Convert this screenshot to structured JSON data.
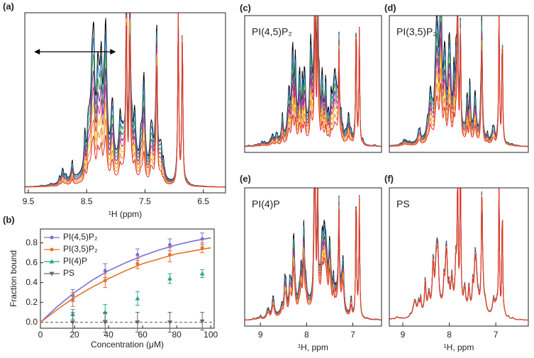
{
  "chart_data": [
    {
      "type": "spectrum",
      "panel": "(a)",
      "xlabel": "¹H (ppm)",
      "xlim": [
        9.56,
        6.12
      ],
      "xticks": [
        9.5,
        8.5,
        7.5,
        6.5
      ],
      "center": 8.0,
      "spread": 0.11,
      "arrow": [
        9.4,
        8.0
      ],
      "trace_colors": [
        "#000000",
        "#2b7bc4",
        "#3c9a4a",
        "#7a2f8e",
        "#d0368f",
        "#f2c318",
        "#f08a3a",
        "#e0302a"
      ]
    },
    {
      "type": "scatter",
      "panel": "(b)",
      "xlabel": "Concentration (μM)",
      "ylabel": "Fraction bound",
      "xlim": [
        0,
        102
      ],
      "ylim": [
        -0.06,
        0.94
      ],
      "xticks": [
        0,
        20,
        40,
        60,
        80,
        100
      ],
      "yticks": [
        {
          "value": 0,
          "label": "0.0"
        },
        {
          "value": 0.2,
          "label": "0.2"
        },
        {
          "value": 0.4,
          "label": "0.4"
        },
        {
          "value": 0.6,
          "label": "0.6"
        },
        {
          "value": 0.8,
          "label": "0.8"
        }
      ],
      "hline": 0,
      "fit_x": [
        0,
        10,
        20,
        30,
        40,
        50,
        60,
        70,
        80,
        90,
        100
      ],
      "series": [
        {
          "name": "PI(4,5)P₂",
          "color": "#7b6fd0",
          "marker": "circle",
          "x": [
            19,
            38,
            57,
            76,
            95
          ],
          "values": [
            0.27,
            0.52,
            0.68,
            0.78,
            0.84
          ],
          "errors": [
            0.06,
            0.07,
            0.06,
            0.06,
            0.06
          ],
          "fit": [
            0,
            0.16,
            0.3,
            0.42,
            0.52,
            0.6,
            0.67,
            0.73,
            0.78,
            0.82,
            0.85
          ]
        },
        {
          "name": "PI(3,5)P₂",
          "color": "#e8702a",
          "marker": "circle",
          "x": [
            19,
            38,
            57,
            76,
            95
          ],
          "values": [
            0.23,
            0.42,
            0.59,
            0.68,
            0.75
          ],
          "errors": [
            0.07,
            0.07,
            0.05,
            0.07,
            0.05
          ],
          "fit": [
            0,
            0.13,
            0.25,
            0.35,
            0.44,
            0.52,
            0.59,
            0.64,
            0.69,
            0.72,
            0.75
          ]
        },
        {
          "name": "PI(4)P",
          "color": "#2ca58d",
          "marker": "triangle",
          "x": [
            19,
            38,
            57,
            76,
            95
          ],
          "values": [
            0.08,
            0.1,
            0.24,
            0.44,
            0.49
          ],
          "errors": [
            0.05,
            0.08,
            0.07,
            0.05,
            0.04
          ]
        },
        {
          "name": "PS",
          "color": "#666666",
          "marker": "down",
          "x": [
            19,
            38,
            57,
            76,
            95
          ],
          "values": [
            0,
            0,
            0,
            0,
            0.01
          ],
          "errors": [
            0.1,
            0.1,
            0.1,
            0.1,
            0.09
          ]
        }
      ]
    },
    {
      "type": "spectrum",
      "panel": "(c)",
      "label": "PI(4,5)P₂",
      "xlim": [
        9.34,
        6.38
      ],
      "xticks": [],
      "center": 7.9,
      "spread": 0.11,
      "trace_colors": [
        "#000000",
        "#2b7bc4",
        "#3c9a4a",
        "#7a2f8e",
        "#d0368f",
        "#f2c318",
        "#f08a3a",
        "#e0302a"
      ]
    },
    {
      "type": "spectrum",
      "panel": "(d)",
      "label": "PI(3,5)P₂",
      "xlim": [
        9.29,
        6.3
      ],
      "xticks": [],
      "center": 7.9,
      "spread": 0.1,
      "trace_colors": [
        "#000000",
        "#2b7bc4",
        "#3c9a4a",
        "#7a2f8e",
        "#d0368f",
        "#f2c318",
        "#f08a3a",
        "#e0302a"
      ]
    },
    {
      "type": "spectrum",
      "panel": "(e)",
      "label": "PI(4)P",
      "xlabel": "¹H, ppm",
      "xlim": [
        9.34,
        6.38
      ],
      "xticks": [
        9.0,
        8.0,
        7.0
      ],
      "center": 7.9,
      "spread": 0.06,
      "trace_colors": [
        "#000000",
        "#2b7bc4",
        "#3c9a4a",
        "#7a2f8e",
        "#d0368f",
        "#f2c318",
        "#f08a3a",
        "#e0302a"
      ]
    },
    {
      "type": "spectrum",
      "panel": "(f)",
      "label": "PS",
      "xlabel": "¹H, ppm",
      "xlim": [
        9.29,
        6.3
      ],
      "xticks": [
        9.0,
        8.0,
        7.0
      ],
      "center": 7.9,
      "spread": 0.015,
      "trace_colors": [
        "#000000",
        "#2b7bc4",
        "#3c9a4a",
        "#7a2f8e",
        "#d0368f",
        "#f2c318",
        "#f08a3a",
        "#e0302a"
      ]
    }
  ]
}
